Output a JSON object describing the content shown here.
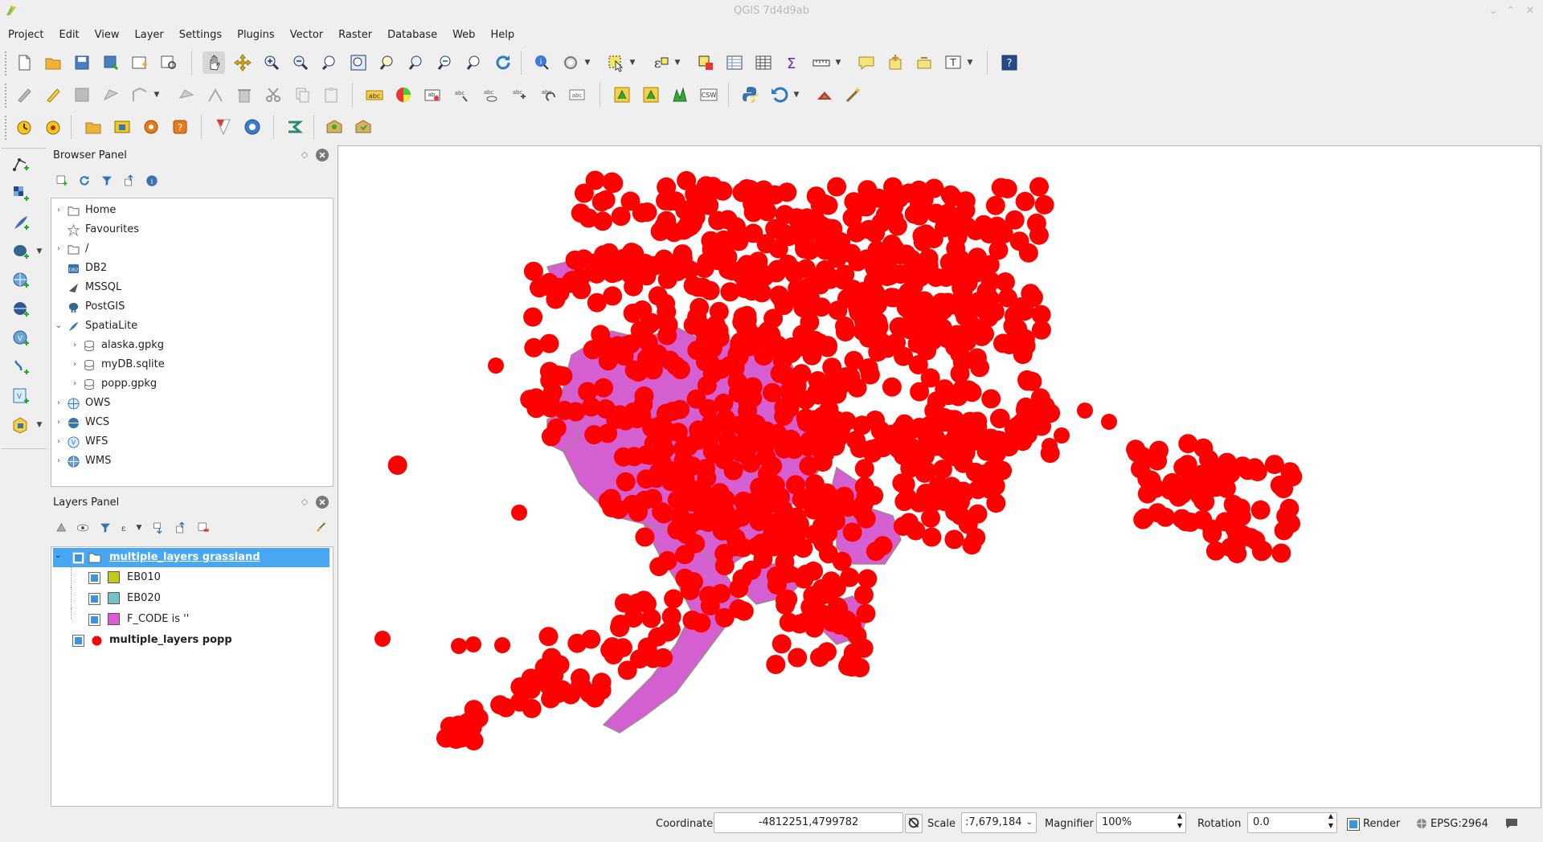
{
  "window": {
    "title": "QGIS 7d4d9ab"
  },
  "menu": [
    "Project",
    "Edit",
    "View",
    "Layer",
    "Settings",
    "Plugins",
    "Vector",
    "Raster",
    "Database",
    "Web",
    "Help"
  ],
  "browser_panel": {
    "title": "Browser Panel",
    "items": [
      {
        "label": "Home",
        "icon": "folder-icon",
        "expandable": true,
        "level": 0
      },
      {
        "label": "Favourites",
        "icon": "star-icon",
        "expandable": false,
        "level": 0
      },
      {
        "label": "/",
        "icon": "folder-icon",
        "expandable": true,
        "level": 0
      },
      {
        "label": "DB2",
        "icon": "db2-icon",
        "expandable": false,
        "level": 0
      },
      {
        "label": "MSSQL",
        "icon": "mssql-icon",
        "expandable": false,
        "level": 0
      },
      {
        "label": "PostGIS",
        "icon": "postgis-elephant-icon",
        "expandable": false,
        "level": 0
      },
      {
        "label": "SpatiaLite",
        "icon": "spatialite-feather-icon",
        "expandable": true,
        "expanded": true,
        "level": 0
      },
      {
        "label": "alaska.gpkg",
        "icon": "database-icon",
        "expandable": true,
        "level": 1
      },
      {
        "label": "myDB.sqlite",
        "icon": "database-icon",
        "expandable": true,
        "level": 1
      },
      {
        "label": "popp.gpkg",
        "icon": "database-icon",
        "expandable": true,
        "level": 1
      },
      {
        "label": "OWS",
        "icon": "globe-icon",
        "expandable": true,
        "level": 0
      },
      {
        "label": "WCS",
        "icon": "wcs-globe-icon",
        "expandable": true,
        "level": 0
      },
      {
        "label": "WFS",
        "icon": "wfs-globe-icon",
        "expandable": true,
        "level": 0
      },
      {
        "label": "WMS",
        "icon": "wms-globe-icon",
        "expandable": true,
        "level": 0
      }
    ]
  },
  "layers_panel": {
    "title": "Layers Panel",
    "layers": [
      {
        "label": "multiple_layers grassland",
        "type": "group",
        "selected": true,
        "checked": true
      },
      {
        "label": "EB010",
        "type": "class",
        "color": "#c2c918",
        "checked": true
      },
      {
        "label": "EB020",
        "type": "class",
        "color": "#72c3c6",
        "checked": true
      },
      {
        "label": "F_CODE is ''",
        "type": "class",
        "color": "#dd5bd6",
        "checked": true
      },
      {
        "label": "multiple_layers popp",
        "type": "point-layer",
        "color": "#ff0000",
        "checked": true
      }
    ]
  },
  "map": {
    "point_color": "#ff0000",
    "polygon_fill": "#d45fd1",
    "polygon_stroke": "#a08a8a"
  },
  "status": {
    "coordinate_label": "Coordinate",
    "coordinate_value": "-4812251,4799782",
    "scale_label": "Scale",
    "scale_value": ":7,679,184",
    "magnifier_label": "Magnifier",
    "magnifier_value": "100%",
    "rotation_label": "Rotation",
    "rotation_value": "0.0",
    "render_label": "Render",
    "crs_label": "EPSG:2964"
  }
}
